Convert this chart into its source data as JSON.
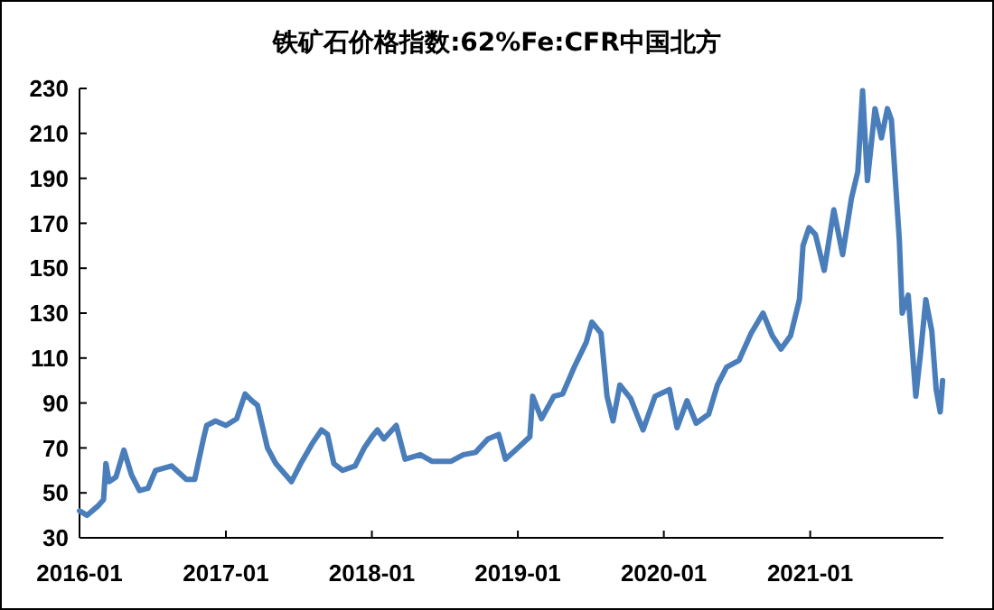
{
  "chart_data": {
    "type": "line",
    "title": "铁矿石价格指数:62%Fe:CFR中国北方",
    "x": [
      "2016-01-01",
      "2016-01-20",
      "2016-02-15",
      "2016-03-01",
      "2016-03-07",
      "2016-03-15",
      "2016-04-01",
      "2016-04-21",
      "2016-05-10",
      "2016-05-30",
      "2016-06-20",
      "2016-07-09",
      "2016-08-18",
      "2016-09-24",
      "2016-10-15",
      "2016-11-07",
      "2016-11-14",
      "2016-12-06",
      "2017-01-01",
      "2017-01-28",
      "2017-02-18",
      "2017-03-07",
      "2017-03-21",
      "2017-04-15",
      "2017-05-06",
      "2017-06-14",
      "2017-07-07",
      "2017-08-05",
      "2017-08-28",
      "2017-09-12",
      "2017-09-28",
      "2017-10-20",
      "2017-11-20",
      "2017-12-13",
      "2018-01-01",
      "2018-01-15",
      "2018-01-31",
      "2018-03-03",
      "2018-03-25",
      "2018-05-02",
      "2018-06-01",
      "2018-07-17",
      "2018-08-18",
      "2018-09-17",
      "2018-10-18",
      "2018-11-14",
      "2018-12-01",
      "2019-01-01",
      "2019-01-31",
      "2019-02-07",
      "2019-03-01",
      "2019-04-01",
      "2019-04-23",
      "2019-05-22",
      "2019-06-21",
      "2019-07-05",
      "2019-07-28",
      "2019-08-12",
      "2019-08-27",
      "2019-09-13",
      "2019-10-10",
      "2019-11-10",
      "2019-12-10",
      "2020-01-15",
      "2020-02-03",
      "2020-02-28",
      "2020-03-22",
      "2020-04-22",
      "2020-05-14",
      "2020-06-06",
      "2020-07-07",
      "2020-08-06",
      "2020-09-05",
      "2020-09-28",
      "2020-10-20",
      "2020-11-13",
      "2020-12-05",
      "2020-12-14",
      "2020-12-29",
      "2021-01-14",
      "2021-02-05",
      "2021-03-01",
      "2021-03-23",
      "2021-04-14",
      "2021-04-30",
      "2021-05-12",
      "2021-05-24",
      "2021-06-12",
      "2021-06-28",
      "2021-07-13",
      "2021-07-23",
      "2021-08-12",
      "2021-08-19",
      "2021-09-03",
      "2021-09-22",
      "2021-10-05",
      "2021-10-17",
      "2021-11-01",
      "2021-11-12",
      "2021-11-22",
      "2021-11-28"
    ],
    "series": [
      {
        "color": "#4a7ebb",
        "values": [
          42,
          40,
          44,
          47,
          63,
          55,
          57,
          69,
          58,
          51,
          52,
          60,
          62,
          56,
          56,
          75,
          80,
          82,
          80,
          83,
          94,
          91,
          89,
          70,
          63,
          55,
          63,
          72,
          78,
          76,
          63,
          60,
          62,
          70,
          75,
          78,
          74,
          80,
          65,
          67,
          64,
          64,
          67,
          68,
          74,
          76,
          65,
          70,
          75,
          93,
          83,
          93,
          94,
          106,
          117,
          126,
          121,
          93,
          82,
          98,
          92,
          78,
          93,
          96,
          79,
          91,
          81,
          85,
          98,
          106,
          109,
          121,
          130,
          120,
          114,
          120,
          136,
          160,
          168,
          165,
          149,
          176,
          156,
          181,
          193,
          229,
          189,
          221,
          208,
          221,
          216,
          162,
          130,
          138,
          93,
          114,
          136,
          122,
          96,
          86,
          100
        ]
      }
    ],
    "xlim": [
      "2016-01-01",
      "2021-11-30"
    ],
    "xticks": [
      "2016-01",
      "2017-01",
      "2018-01",
      "2019-01",
      "2020-01",
      "2021-01"
    ],
    "ylim": [
      30,
      230
    ],
    "yticks": [
      30,
      50,
      70,
      90,
      110,
      130,
      150,
      170,
      190,
      210,
      230
    ],
    "grid": false
  }
}
